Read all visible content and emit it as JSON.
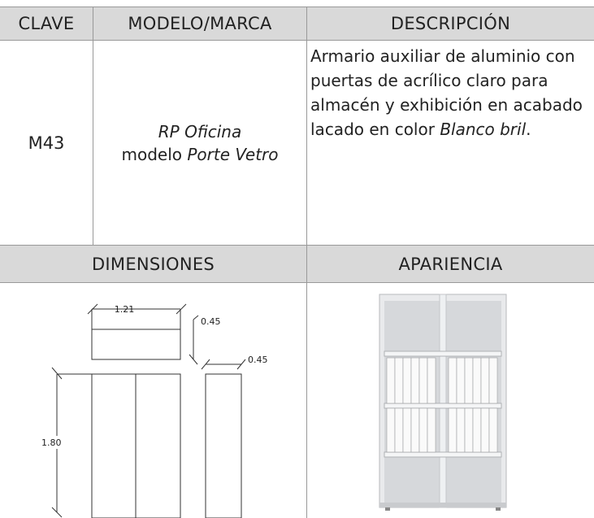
{
  "table": {
    "headers": [
      "CLAVE",
      "MODELO/MARCA",
      "DESCRIPCIÓN"
    ],
    "row": {
      "clave": "M43",
      "brand": "RP Oficina",
      "model_prefix": "modelo",
      "model": "Porte Vetro",
      "description": "Armario auxiliar de aluminio con puertas de acrílico claro para almacén y exhibición en acabado lacado en color",
      "finish": "Blanco bril",
      "finish_suffix": "."
    },
    "headers2": [
      "DIMENSIONES",
      "APARIENCIA"
    ]
  },
  "dimensions": {
    "width": "1.21",
    "depth": "0.45",
    "side_depth": "0.45",
    "height": "1.80"
  }
}
